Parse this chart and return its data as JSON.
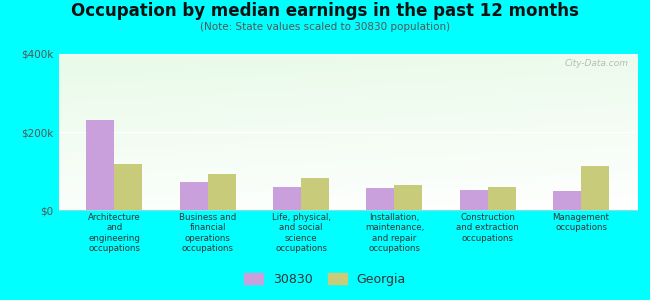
{
  "title": "Occupation by median earnings in the past 12 months",
  "subtitle": "(Note: State values scaled to 30830 population)",
  "categories": [
    "Architecture\nand\nengineering\noccupations",
    "Business and\nfinancial\noperations\noccupations",
    "Life, physical,\nand social\nscience\noccupations",
    "Installation,\nmaintenance,\nand repair\noccupations",
    "Construction\nand extraction\noccupations",
    "Management\noccupations"
  ],
  "values_30830": [
    230000,
    72000,
    60000,
    57000,
    52000,
    48000
  ],
  "values_georgia": [
    118000,
    92000,
    82000,
    63000,
    60000,
    112000
  ],
  "color_30830": "#c9a0dc",
  "color_georgia": "#c8cc7a",
  "ylim": [
    0,
    400000
  ],
  "yticks": [
    0,
    200000,
    400000
  ],
  "ytick_labels": [
    "$0",
    "$200k",
    "$400k"
  ],
  "background_color": "#00ffff",
  "legend_label_30830": "30830",
  "legend_label_georgia": "Georgia",
  "watermark": "City-Data.com",
  "bar_width": 0.3
}
